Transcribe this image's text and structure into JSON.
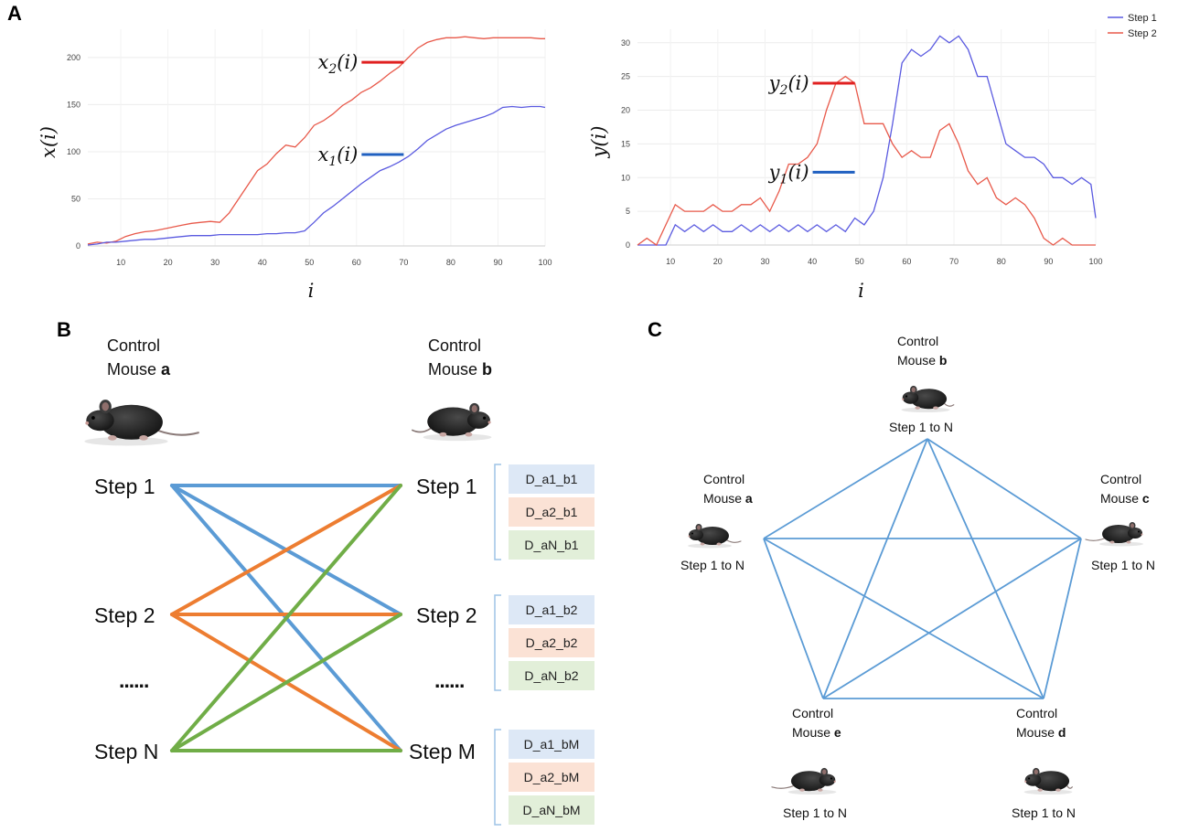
{
  "panels": {
    "a": "A",
    "b": "B",
    "c": "C"
  },
  "chart_data": [
    {
      "type": "line",
      "id": "left",
      "xlabel": "i",
      "ylabel_main": "x",
      "ylabel_arg": "(i)",
      "xlim": [
        3,
        100
      ],
      "ylim": [
        0,
        230
      ],
      "xticks": [
        10,
        20,
        30,
        40,
        50,
        60,
        70,
        80,
        90,
        100
      ],
      "yticks": [
        0,
        50,
        100,
        150,
        200
      ],
      "series": [
        {
          "name": "Step 2",
          "color": "#e8594a",
          "x": [
            3,
            5,
            7,
            9,
            11,
            13,
            15,
            17,
            19,
            21,
            23,
            25,
            27,
            29,
            31,
            33,
            35,
            37,
            39,
            41,
            43,
            45,
            47,
            49,
            51,
            53,
            55,
            57,
            59,
            61,
            63,
            65,
            67,
            69,
            71,
            73,
            75,
            77,
            79,
            81,
            83,
            85,
            87,
            89,
            91,
            93,
            95,
            97,
            99,
            100
          ],
          "y": [
            2,
            4,
            3,
            5,
            10,
            13,
            15,
            16,
            18,
            20,
            22,
            24,
            25,
            26,
            25,
            35,
            50,
            65,
            80,
            87,
            98,
            107,
            105,
            115,
            128,
            133,
            140,
            149,
            155,
            163,
            168,
            175,
            183,
            190,
            200,
            210,
            216,
            219,
            221,
            221,
            222,
            221,
            220,
            221,
            221,
            221,
            221,
            221,
            220,
            220
          ]
        },
        {
          "name": "Step 1",
          "color": "#5a5ae0",
          "x": [
            3,
            5,
            7,
            9,
            11,
            13,
            15,
            17,
            19,
            21,
            23,
            25,
            27,
            29,
            31,
            33,
            35,
            37,
            39,
            41,
            43,
            45,
            47,
            49,
            51,
            53,
            55,
            57,
            59,
            61,
            63,
            65,
            67,
            69,
            71,
            73,
            75,
            77,
            79,
            81,
            83,
            85,
            87,
            89,
            91,
            93,
            95,
            97,
            99,
            100
          ],
          "y": [
            1,
            2,
            4,
            4,
            5,
            6,
            7,
            7,
            8,
            9,
            10,
            11,
            11,
            11,
            12,
            12,
            12,
            12,
            12,
            13,
            13,
            14,
            14,
            16,
            25,
            35,
            42,
            50,
            58,
            66,
            73,
            80,
            84,
            89,
            95,
            103,
            112,
            118,
            124,
            128,
            131,
            134,
            137,
            141,
            147,
            148,
            147,
            148,
            148,
            147
          ]
        }
      ],
      "annotations": [
        {
          "main": "x",
          "sub": "2",
          "arg": "(i)",
          "color": "#e02020",
          "x": 70,
          "y": 195
        },
        {
          "main": "x",
          "sub": "1",
          "arg": "(i)",
          "color": "#2060c0",
          "x": 70,
          "y": 97
        }
      ]
    },
    {
      "type": "line",
      "id": "right",
      "xlabel": "i",
      "ylabel_main": "y",
      "ylabel_arg": "(i)",
      "xlim": [
        3,
        100
      ],
      "ylim": [
        0,
        32
      ],
      "xticks": [
        10,
        20,
        30,
        40,
        50,
        60,
        70,
        80,
        90,
        100
      ],
      "yticks": [
        0,
        5,
        10,
        15,
        20,
        25,
        30
      ],
      "legend": {
        "position": "top-right",
        "entries": [
          "Step 1",
          "Step 2"
        ]
      },
      "series": [
        {
          "name": "Step 1",
          "color": "#5a5ae0",
          "x": [
            3,
            5,
            7,
            9,
            11,
            13,
            15,
            17,
            19,
            21,
            23,
            25,
            27,
            29,
            31,
            33,
            35,
            37,
            39,
            41,
            43,
            45,
            47,
            49,
            51,
            53,
            55,
            57,
            59,
            61,
            63,
            65,
            67,
            69,
            71,
            73,
            75,
            77,
            79,
            81,
            83,
            85,
            87,
            89,
            91,
            93,
            95,
            97,
            99,
            100
          ],
          "y": [
            0,
            0,
            0,
            0,
            3,
            2,
            3,
            2,
            3,
            2,
            2,
            3,
            2,
            3,
            2,
            3,
            2,
            3,
            2,
            3,
            2,
            3,
            2,
            4,
            3,
            5,
            10,
            18,
            27,
            29,
            28,
            29,
            31,
            30,
            31,
            29,
            25,
            25,
            20,
            15,
            14,
            13,
            13,
            12,
            10,
            10,
            9,
            10,
            9,
            4
          ]
        },
        {
          "name": "Step 2",
          "color": "#e8594a",
          "x": [
            3,
            5,
            7,
            9,
            11,
            13,
            15,
            17,
            19,
            21,
            23,
            25,
            27,
            29,
            31,
            33,
            35,
            37,
            39,
            41,
            43,
            45,
            47,
            49,
            51,
            53,
            55,
            57,
            59,
            61,
            63,
            65,
            67,
            69,
            71,
            73,
            75,
            77,
            79,
            81,
            83,
            85,
            87,
            89,
            91,
            93,
            95,
            97,
            99,
            100
          ],
          "y": [
            0,
            1,
            0,
            3,
            6,
            5,
            5,
            5,
            6,
            5,
            5,
            6,
            6,
            7,
            5,
            8,
            12,
            12,
            13,
            15,
            20,
            24,
            25,
            24,
            18,
            18,
            18,
            15,
            13,
            14,
            13,
            13,
            17,
            18,
            15,
            11,
            9,
            10,
            7,
            6,
            7,
            6,
            4,
            1,
            0,
            1,
            0,
            0,
            0,
            0
          ]
        }
      ],
      "annotations": [
        {
          "main": "y",
          "sub": "2",
          "arg": "(i)",
          "color": "#e02020",
          "x": 49,
          "y": 24
        },
        {
          "main": "y",
          "sub": "1",
          "arg": "(i)",
          "color": "#2060c0",
          "x": 49,
          "y": 10.8
        }
      ]
    }
  ],
  "panel_b": {
    "mouse_a": {
      "line1": "Control",
      "line2": "Mouse",
      "letter": "a"
    },
    "mouse_b": {
      "line1": "Control",
      "line2": "Mouse",
      "letter": "b"
    },
    "left_steps": [
      "Step 1",
      "Step 2",
      "Step N"
    ],
    "right_steps": [
      "Step 1",
      "Step 2",
      "Step M"
    ],
    "dots": "......",
    "colors": {
      "blue": "#5b9bd5",
      "orange": "#ed7d31",
      "green": "#70ad47",
      "box_blue": "#dde8f6",
      "box_orange": "#fbe2d5",
      "box_green": "#e2efd9",
      "bracket": "#9dc3e6"
    },
    "groups": [
      [
        "D_a1_b1",
        "D_a2_b1",
        "D_aN_b1"
      ],
      [
        "D_a1_b2",
        "D_a2_b2",
        "D_aN_b2"
      ],
      [
        "D_a1_bM",
        "D_a2_bM",
        "D_aN_bM"
      ]
    ]
  },
  "panel_c": {
    "line_color": "#5b9bd5",
    "step_label": "Step 1 to N",
    "mice": {
      "b": {
        "line1": "Control",
        "line2": "Mouse",
        "letter": "b"
      },
      "a": {
        "line1": "Control",
        "line2": "Mouse",
        "letter": "a"
      },
      "c": {
        "line1": "Control",
        "line2": "Mouse",
        "letter": "c"
      },
      "e": {
        "line1": "Control",
        "line2": "Mouse",
        "letter": "e"
      },
      "d": {
        "line1": "Control",
        "line2": "Mouse",
        "letter": "d"
      }
    }
  }
}
